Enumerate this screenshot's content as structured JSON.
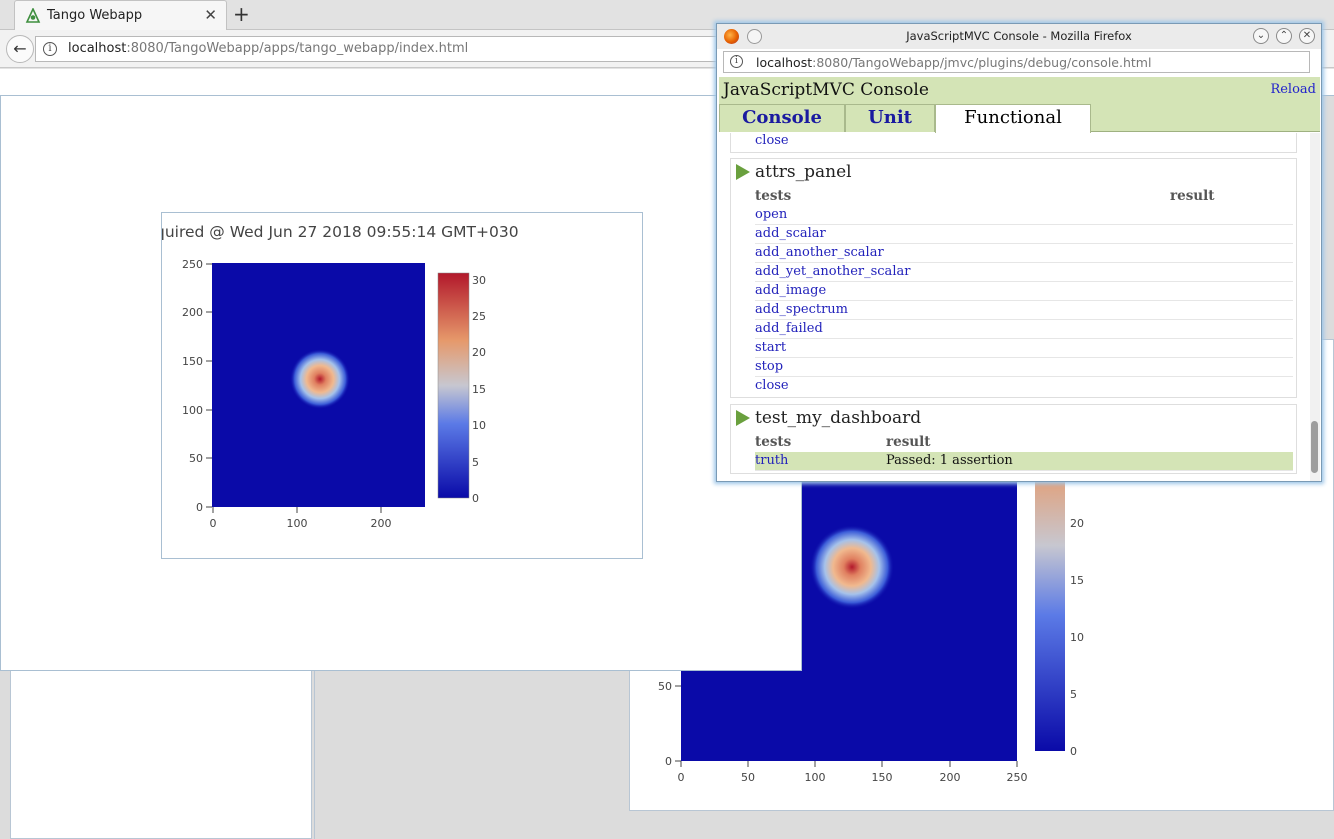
{
  "browser": {
    "tab_title": "Tango Webapp",
    "tab_close": "✕",
    "new_tab": "+",
    "back": "←",
    "info": "i",
    "url_host": "localhost",
    "url_rest": ":8080/TangoWebapp/apps/tango_webapp/index.html"
  },
  "plot": {
    "title": "quired @ Wed Jun 27 2018 09:55:14 GMT+030",
    "y_ticks": [
      "250",
      "200",
      "150",
      "100",
      "50",
      "0"
    ],
    "x_ticks": [
      "0",
      "100",
      "200"
    ],
    "colorbar_ticks": [
      "30",
      "25",
      "20",
      "15",
      "10",
      "5",
      "0"
    ]
  },
  "background_plot": {
    "y_ticks": [
      "50",
      "0"
    ],
    "x_ticks": [
      "0",
      "50",
      "100",
      "150",
      "200",
      "250"
    ],
    "colorbar_ticks": [
      "20",
      "15",
      "10",
      "5",
      "0"
    ]
  },
  "colors": {
    "heatmap_low": "#0a0aa8",
    "heatmap_high": "#b2182b",
    "console_green": "#d4e4b6",
    "link_blue": "#2222bb"
  },
  "console": {
    "window_title": "JavaScriptMVC Console - Mozilla Firefox",
    "url_host": "localhost",
    "url_rest": ":8080/TangoWebapp/jmvc/plugins/debug/console.html",
    "header_title": "JavaScriptMVC Console",
    "reload": "Reload",
    "tabs": [
      {
        "label": "Console"
      },
      {
        "label": "Unit"
      },
      {
        "label": "Functional"
      }
    ],
    "active_tab": "Functional",
    "prev_last": "close",
    "suites": [
      {
        "name": "attrs_panel",
        "col_tests": "tests",
        "col_result": "result",
        "tests": [
          "open",
          "add_scalar",
          "add_another_scalar",
          "add_yet_another_scalar",
          "add_image",
          "add_spectrum",
          "add_failed",
          "start",
          "stop",
          "close"
        ]
      },
      {
        "name": "test_my_dashboard",
        "col_tests": "tests",
        "col_result": "result",
        "tests": [
          {
            "name": "truth",
            "result": "Passed: 1 assertion"
          }
        ]
      }
    ]
  }
}
